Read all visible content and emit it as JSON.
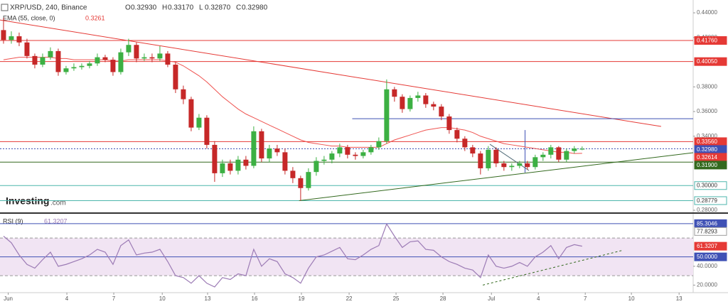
{
  "chart_data": [
    {
      "type": "candlestick",
      "title": "XRP/USD, 240, Binance",
      "ohlc": [
        {
          "label": "O",
          "value": "0.32930"
        },
        {
          "label": "H",
          "value": "0.33170"
        },
        {
          "label": "L",
          "value": "0.32870"
        },
        {
          "label": "C",
          "value": "0.32980"
        }
      ],
      "watermark": [
        "Investing",
        ".com"
      ],
      "ylim": [
        0.2777,
        0.4504
      ],
      "yticks": [
        {
          "value": 0.28,
          "label": "0.28000"
        },
        {
          "value": 0.34,
          "label": "0.34000"
        },
        {
          "value": 0.36,
          "label": "0.36000"
        },
        {
          "value": 0.38,
          "label": "0.38000"
        },
        {
          "value": 0.42,
          "label": "0.42000"
        },
        {
          "value": 0.44,
          "label": "0.44000"
        }
      ],
      "up_color": "#3cb043",
      "down_color": "#c62828",
      "open": [
        0.426,
        0.418,
        0.421,
        0.416,
        0.405,
        0.398,
        0.404,
        0.409,
        0.392,
        0.395,
        0.396,
        0.397,
        0.399,
        0.404,
        0.402,
        0.392,
        0.408,
        0.414,
        0.403,
        0.404,
        0.403,
        0.407,
        0.398,
        0.378,
        0.37,
        0.347,
        0.355,
        0.333,
        0.31,
        0.318,
        0.312,
        0.321,
        0.316,
        0.344,
        0.322,
        0.33,
        0.327,
        0.312,
        0.306,
        0.298,
        0.311,
        0.32,
        0.321,
        0.326,
        0.331,
        0.325,
        0.324,
        0.327,
        0.331,
        0.336,
        0.378,
        0.372,
        0.362,
        0.371,
        0.373,
        0.366,
        0.364,
        0.356,
        0.345,
        0.338,
        0.331,
        0.326,
        0.314,
        0.329,
        0.318,
        0.315,
        0.316,
        0.318,
        0.315,
        0.323,
        0.325,
        0.331,
        0.321,
        0.328,
        0.3293
      ],
      "high": [
        0.436,
        0.425,
        0.424,
        0.419,
        0.407,
        0.407,
        0.412,
        0.411,
        0.397,
        0.399,
        0.399,
        0.401,
        0.407,
        0.406,
        0.404,
        0.411,
        0.419,
        0.416,
        0.407,
        0.407,
        0.413,
        0.409,
        0.4,
        0.381,
        0.372,
        0.358,
        0.357,
        0.336,
        0.321,
        0.321,
        0.324,
        0.324,
        0.348,
        0.346,
        0.333,
        0.333,
        0.33,
        0.315,
        0.308,
        0.314,
        0.323,
        0.324,
        0.328,
        0.334,
        0.333,
        0.327,
        0.329,
        0.333,
        0.339,
        0.386,
        0.38,
        0.374,
        0.373,
        0.376,
        0.375,
        0.368,
        0.366,
        0.358,
        0.347,
        0.34,
        0.333,
        0.328,
        0.332,
        0.331,
        0.32,
        0.318,
        0.32,
        0.32,
        0.325,
        0.327,
        0.333,
        0.332,
        0.33,
        0.332,
        0.3317
      ],
      "low": [
        0.415,
        0.415,
        0.413,
        0.403,
        0.395,
        0.396,
        0.402,
        0.389,
        0.39,
        0.393,
        0.394,
        0.395,
        0.397,
        0.4,
        0.389,
        0.39,
        0.405,
        0.4,
        0.401,
        0.4,
        0.401,
        0.396,
        0.375,
        0.366,
        0.344,
        0.345,
        0.33,
        0.303,
        0.307,
        0.309,
        0.309,
        0.313,
        0.314,
        0.319,
        0.319,
        0.324,
        0.309,
        0.302,
        0.2878,
        0.296,
        0.308,
        0.317,
        0.318,
        0.323,
        0.322,
        0.321,
        0.322,
        0.325,
        0.329,
        0.334,
        0.368,
        0.359,
        0.36,
        0.368,
        0.363,
        0.361,
        0.353,
        0.342,
        0.335,
        0.328,
        0.323,
        0.309,
        0.312,
        0.315,
        0.312,
        0.312,
        0.314,
        0.313,
        0.313,
        0.32,
        0.322,
        0.319,
        0.319,
        0.326,
        0.3287
      ],
      "close": [
        0.418,
        0.421,
        0.416,
        0.405,
        0.398,
        0.404,
        0.409,
        0.392,
        0.395,
        0.396,
        0.397,
        0.399,
        0.404,
        0.402,
        0.392,
        0.408,
        0.414,
        0.403,
        0.404,
        0.403,
        0.407,
        0.398,
        0.378,
        0.37,
        0.347,
        0.355,
        0.333,
        0.31,
        0.318,
        0.312,
        0.321,
        0.316,
        0.344,
        0.322,
        0.33,
        0.327,
        0.312,
        0.306,
        0.298,
        0.311,
        0.32,
        0.321,
        0.326,
        0.331,
        0.325,
        0.324,
        0.327,
        0.331,
        0.336,
        0.378,
        0.372,
        0.362,
        0.371,
        0.373,
        0.366,
        0.364,
        0.356,
        0.345,
        0.338,
        0.331,
        0.326,
        0.314,
        0.329,
        0.318,
        0.315,
        0.316,
        0.318,
        0.315,
        0.323,
        0.325,
        0.331,
        0.321,
        0.328,
        0.33,
        0.3298
      ],
      "ema": {
        "name": "EMA (55, close, 0)",
        "color": "#ef5350",
        "label": "0.3261",
        "values": [
          0.402,
          0.403,
          0.404,
          0.404,
          0.404,
          0.404,
          0.404,
          0.403,
          0.403,
          0.402,
          0.402,
          0.402,
          0.402,
          0.402,
          0.401,
          0.401,
          0.402,
          0.402,
          0.402,
          0.402,
          0.402,
          0.401,
          0.4,
          0.397,
          0.393,
          0.389,
          0.384,
          0.378,
          0.372,
          0.367,
          0.362,
          0.358,
          0.355,
          0.352,
          0.349,
          0.346,
          0.343,
          0.34,
          0.337,
          0.335,
          0.334,
          0.333,
          0.332,
          0.332,
          0.331,
          0.331,
          0.331,
          0.331,
          0.331,
          0.334,
          0.337,
          0.339,
          0.341,
          0.343,
          0.345,
          0.346,
          0.347,
          0.347,
          0.346,
          0.345,
          0.343,
          0.34,
          0.338,
          0.336,
          0.334,
          0.333,
          0.332,
          0.331,
          0.33,
          0.329,
          0.328,
          0.327,
          0.327,
          0.326,
          0.3261
        ]
      },
      "levels": [
        {
          "value": 0.4176,
          "label": "0.41760",
          "color": "#e53935",
          "line": "solid",
          "box": "fill"
        },
        {
          "value": 0.4005,
          "label": "0.40050",
          "color": "#e53935",
          "line": "solid",
          "box": "fill"
        },
        {
          "value": 0.3356,
          "label": "0.33560",
          "color": "#e53935",
          "line": "solid",
          "box": "fill"
        },
        {
          "value": 0.3298,
          "label": "0.32980",
          "color": "#3f51b5",
          "line": "dotted",
          "box": "fill"
        },
        {
          "value": 0.32614,
          "label": "0.32614",
          "color": "#e53935",
          "line": "none",
          "box": "fill"
        },
        {
          "value": 0.319,
          "label": "0.31900",
          "color": "#33691e",
          "line": "solid",
          "box": "fill"
        },
        {
          "value": 0.3,
          "label": "0.30000",
          "color": "#4db6ac",
          "line": "solid",
          "box": "outline"
        },
        {
          "value": 0.28779,
          "label": "0.28779",
          "color": "#4db6ac",
          "line": "solid",
          "box": "outline"
        }
      ],
      "trendlines": [
        {
          "color": "#e53935",
          "points": [
            [
              -0.45,
              0.4342
            ],
            [
              84.1,
              0.3479
            ]
          ]
        },
        {
          "color": "#33691e",
          "points": [
            [
              37.8,
              0.2878
            ],
            [
              88.2,
              0.3266
            ]
          ]
        },
        {
          "color": "#3f51b5",
          "points": [
            [
              44.6,
              0.3542
            ],
            [
              88.2,
              0.3542
            ]
          ]
        },
        {
          "color": "#3f51b5",
          "points": [
            [
              66.7,
              0.345
            ],
            [
              66.7,
              0.3105
            ]
          ]
        },
        {
          "color": "#546e7a",
          "points": [
            [
              62.2,
              0.3335
            ],
            [
              67.2,
              0.3122
            ]
          ]
        }
      ]
    },
    {
      "type": "line",
      "ylim": [
        12,
        95
      ],
      "yticks": [
        {
          "value": 20,
          "label": "20.0000"
        },
        {
          "value": 40,
          "label": "40.0000"
        }
      ],
      "xlim": [
        -0.45,
        88.2
      ],
      "xticks": [
        {
          "value": 0.6,
          "label": "Jun"
        },
        {
          "value": 8.1,
          "label": "4"
        },
        {
          "value": 14.1,
          "label": "7"
        },
        {
          "value": 20.3,
          "label": "10"
        },
        {
          "value": 26.1,
          "label": "13"
        },
        {
          "value": 32.1,
          "label": "16"
        },
        {
          "value": 38.1,
          "label": "19"
        },
        {
          "value": 44.2,
          "label": "22"
        },
        {
          "value": 50.2,
          "label": "25"
        },
        {
          "value": 56.2,
          "label": "28"
        },
        {
          "value": 62.4,
          "label": "Jul"
        },
        {
          "value": 68.4,
          "label": "4"
        },
        {
          "value": 74.4,
          "label": "7"
        },
        {
          "value": 80.3,
          "label": "10"
        },
        {
          "value": 86.4,
          "label": "13"
        }
      ],
      "series": [
        {
          "name": "RSI (9)",
          "color": "#9c7bb5",
          "label": "61.3207",
          "values": [
            72,
            65,
            52,
            42,
            38,
            47,
            55,
            40,
            42,
            45,
            48,
            52,
            58,
            55,
            42,
            62,
            68,
            52,
            54,
            55,
            58,
            45,
            30,
            28,
            22,
            30,
            22,
            18,
            28,
            26,
            32,
            30,
            58,
            40,
            48,
            45,
            32,
            28,
            22,
            38,
            50,
            52,
            56,
            60,
            48,
            47,
            52,
            58,
            62,
            85,
            72,
            60,
            66,
            67,
            58,
            57,
            50,
            45,
            42,
            38,
            36,
            28,
            52,
            40,
            38,
            40,
            44,
            40,
            50,
            55,
            62,
            48,
            60,
            63,
            61.3207
          ]
        }
      ],
      "band": {
        "range": [
          30,
          70
        ],
        "color": "#f1e4f3"
      },
      "levels": [
        {
          "value": 85.3046,
          "label": "85.3046",
          "color": "#3f51b5",
          "line": "solid",
          "box": "fill"
        },
        {
          "value": 77.8293,
          "label": "77.8293",
          "color": "#9e9e9e",
          "line": "none",
          "box": "outline"
        },
        {
          "value": 61.3207,
          "label": "61.3207",
          "color": "#e53935",
          "line": "none",
          "box": "fill"
        },
        {
          "value": 50,
          "label": "50.0000",
          "color": "#3f51b5",
          "line": "solid",
          "box": "fill"
        }
      ],
      "trendlines": [
        {
          "color": "#33691e",
          "dash": true,
          "points": [
            [
              61.3,
              20
            ],
            [
              79.2,
              57
            ]
          ]
        }
      ]
    }
  ]
}
